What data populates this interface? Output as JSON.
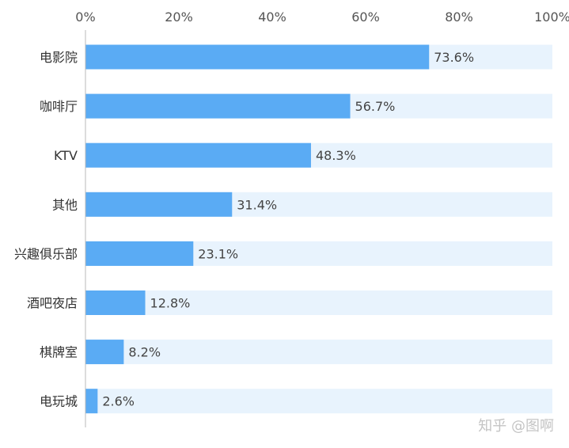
{
  "chart_data": {
    "type": "bar",
    "orientation": "horizontal",
    "categories": [
      "电影院",
      "咖啡厅",
      "KTV",
      "其他",
      "兴趣俱乐部",
      "酒吧夜店",
      "棋牌室",
      "电玩城"
    ],
    "values": [
      73.6,
      56.7,
      48.3,
      31.4,
      23.1,
      12.8,
      8.2,
      2.6
    ],
    "data_labels": [
      "73.6%",
      "56.7%",
      "48.3%",
      "31.4%",
      "23.1%",
      "12.8%",
      "8.2%",
      "2.6%"
    ],
    "xlim": [
      0,
      100
    ],
    "x_ticks": [
      0,
      20,
      40,
      60,
      80,
      100
    ],
    "x_tick_labels": [
      "0%",
      "20%",
      "40%",
      "60%",
      "80%",
      "100%"
    ],
    "x_axis_position": "top",
    "grid": false,
    "background_track": true,
    "title": "",
    "xlabel": "",
    "ylabel": ""
  },
  "colors": {
    "bar": "#5aabf4",
    "track": "#e8f3fd",
    "axis": "#b8b8b8"
  },
  "watermark": "知乎 @图啊"
}
